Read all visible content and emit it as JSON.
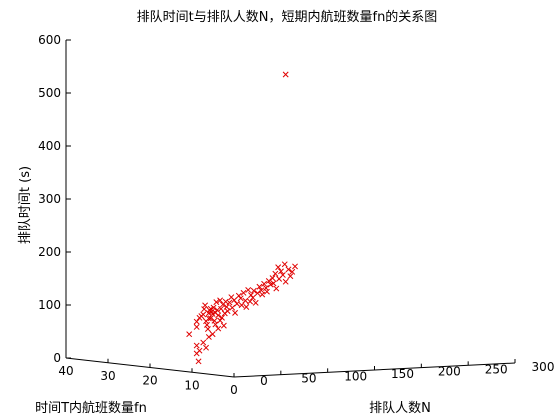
{
  "chart_data": {
    "type": "scatter",
    "projection": "3d",
    "title": "排队时间t与排队人数N，短期内航班数量fn的关系图",
    "xlabel": "排队人数N",
    "ylabel": "时间T内航班数量fn",
    "zlabel": "排队时间t (s)",
    "xlim": [
      0,
      300
    ],
    "ylim": [
      0,
      40
    ],
    "zlim": [
      0,
      600
    ],
    "xticks": [
      "0",
      "50",
      "100",
      "150",
      "200",
      "250",
      "300"
    ],
    "yticks": [
      "0",
      "10",
      "20",
      "30",
      "40"
    ],
    "zticks": [
      "0",
      "100",
      "200",
      "300",
      "400",
      "500",
      "600"
    ],
    "marker": "x",
    "marker_color": "#e00000",
    "grid": false,
    "outlier": {
      "x": 100,
      "y": 10,
      "z": 553
    },
    "points": [
      [
        -3,
        10,
        72
      ],
      [
        5,
        10,
        85
      ],
      [
        5,
        10,
        95
      ],
      [
        8,
        10,
        102
      ],
      [
        10,
        10,
        105
      ],
      [
        12,
        10,
        108
      ],
      [
        13,
        10,
        118
      ],
      [
        15,
        10,
        95
      ],
      [
        16,
        10,
        88
      ],
      [
        17,
        10,
        80
      ],
      [
        14,
        10,
        125
      ],
      [
        18,
        10,
        110
      ],
      [
        18,
        10,
        100
      ],
      [
        19,
        10,
        115
      ],
      [
        20,
        10,
        100
      ],
      [
        20,
        10,
        118
      ],
      [
        21,
        10,
        112
      ],
      [
        22,
        10,
        108
      ],
      [
        23,
        10,
        120
      ],
      [
        24,
        10,
        95
      ],
      [
        25,
        10,
        88
      ],
      [
        25,
        10,
        110
      ],
      [
        26,
        10,
        130
      ],
      [
        27,
        10,
        115
      ],
      [
        28,
        10,
        105
      ],
      [
        30,
        10,
        133
      ],
      [
        31,
        10,
        117
      ],
      [
        32,
        10,
        100
      ],
      [
        33,
        10,
        125
      ],
      [
        34,
        10,
        85
      ],
      [
        35,
        10,
        108
      ],
      [
        36,
        10,
        130
      ],
      [
        37,
        10,
        120
      ],
      [
        38,
        10,
        112
      ],
      [
        40,
        10,
        128
      ],
      [
        42,
        10,
        138
      ],
      [
        43,
        10,
        118
      ],
      [
        45,
        10,
        132
      ],
      [
        46,
        10,
        108
      ],
      [
        48,
        10,
        125
      ],
      [
        50,
        10,
        140
      ],
      [
        52,
        10,
        135
      ],
      [
        53,
        10,
        122
      ],
      [
        55,
        10,
        145
      ],
      [
        57,
        10,
        130
      ],
      [
        58,
        10,
        118
      ],
      [
        60,
        10,
        150
      ],
      [
        62,
        10,
        128
      ],
      [
        63,
        10,
        140
      ],
      [
        65,
        10,
        135
      ],
      [
        66,
        10,
        148
      ],
      [
        68,
        10,
        125
      ],
      [
        70,
        10,
        143
      ],
      [
        72,
        10,
        155
      ],
      [
        74,
        10,
        148
      ],
      [
        75,
        10,
        140
      ],
      [
        77,
        10,
        160
      ],
      [
        79,
        10,
        152
      ],
      [
        80,
        10,
        145
      ],
      [
        82,
        10,
        165
      ],
      [
        84,
        10,
        158
      ],
      [
        86,
        10,
        170
      ],
      [
        87,
        10,
        160
      ],
      [
        89,
        10,
        178
      ],
      [
        90,
        10,
        150
      ],
      [
        92,
        10,
        190
      ],
      [
        93,
        10,
        168
      ],
      [
        95,
        10,
        182
      ],
      [
        97,
        10,
        175
      ],
      [
        99,
        10,
        195
      ],
      [
        100,
        10,
        162
      ],
      [
        103,
        10,
        185
      ],
      [
        105,
        10,
        172
      ],
      [
        107,
        10,
        180
      ],
      [
        110,
        10,
        190
      ],
      [
        5,
        10,
        50
      ],
      [
        8,
        10,
        40
      ],
      [
        12,
        10,
        55
      ],
      [
        15,
        10,
        45
      ],
      [
        18,
        10,
        65
      ],
      [
        22,
        10,
        70
      ],
      [
        28,
        10,
        80
      ],
      [
        30,
        10,
        95
      ],
      [
        7,
        10,
        20
      ],
      [
        5,
        10,
        35
      ]
    ]
  }
}
